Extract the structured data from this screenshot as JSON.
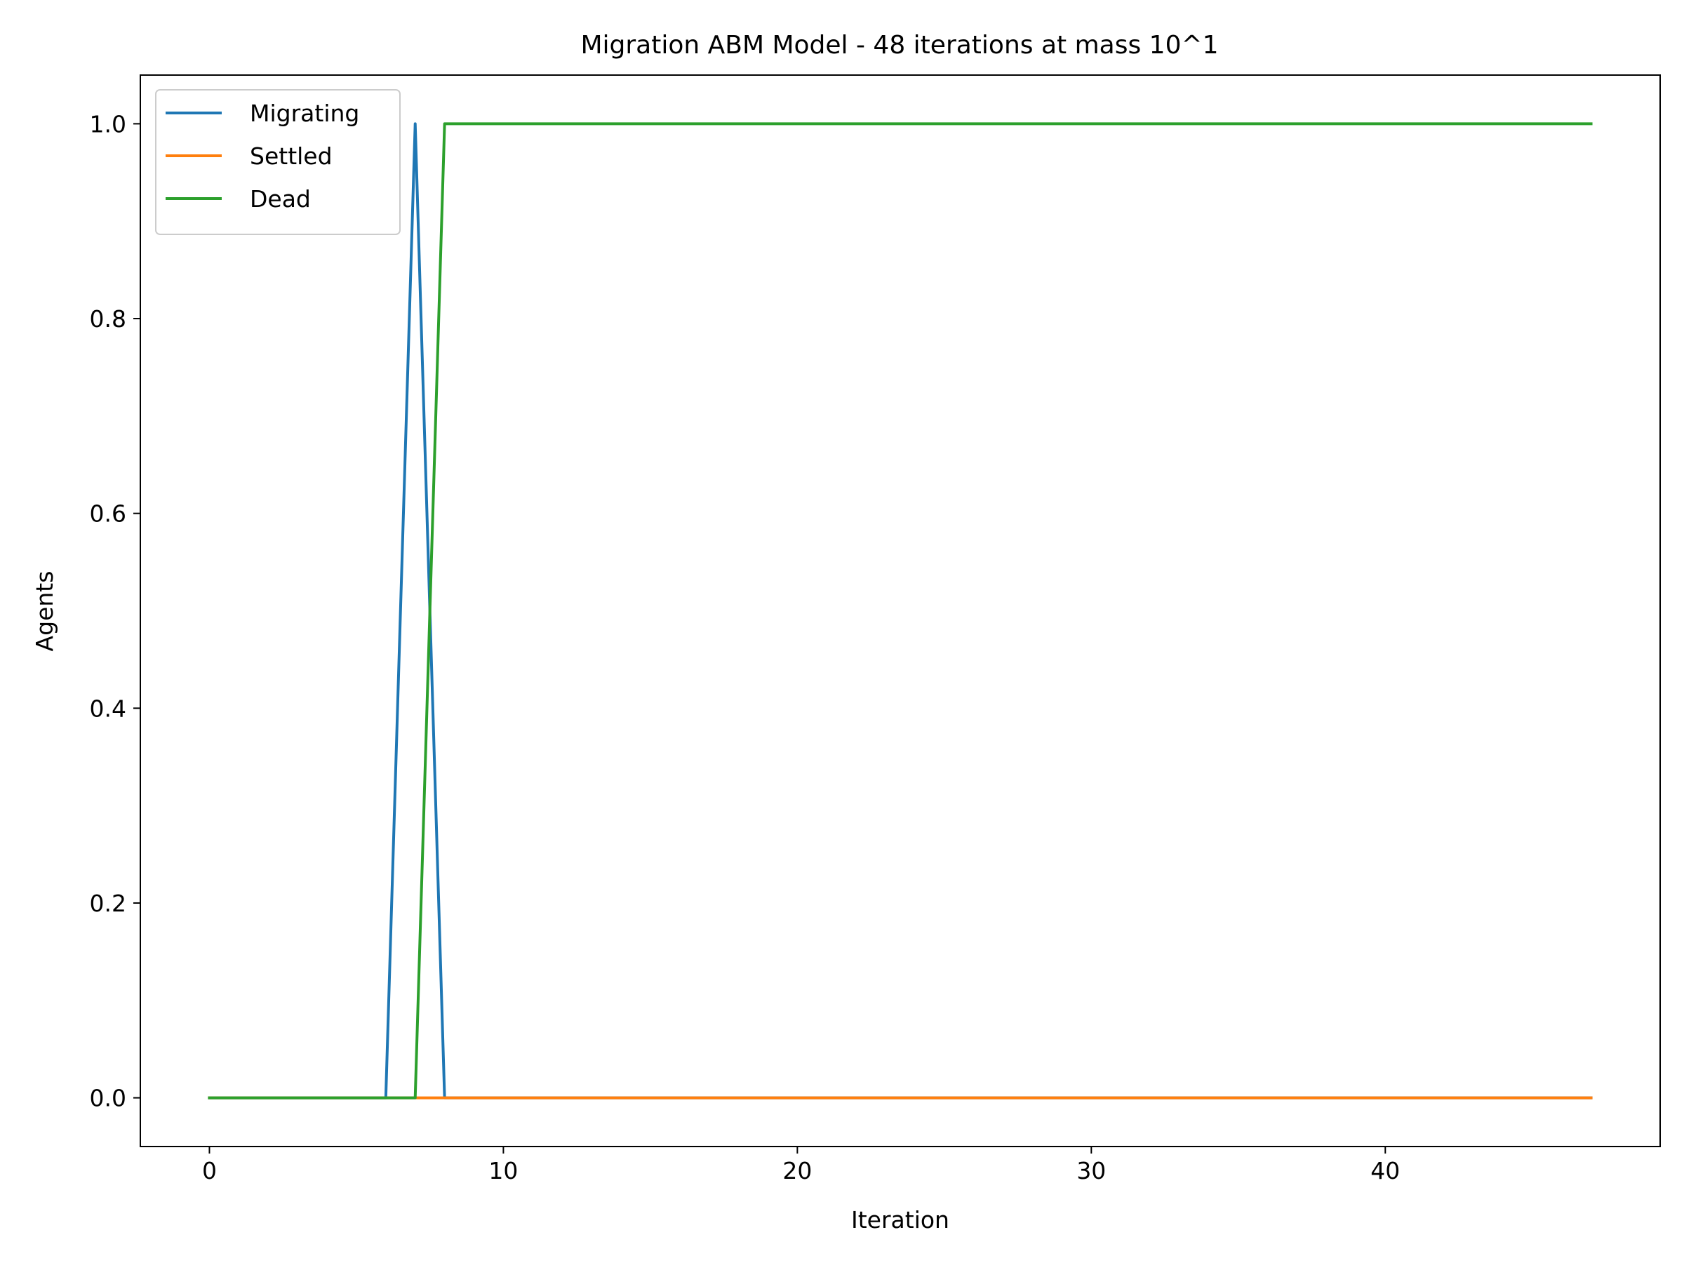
{
  "chart_data": {
    "type": "line",
    "title": "Migration ABM Model - 48 iterations at mass 10^1",
    "xlabel": "Iteration",
    "ylabel": "Agents",
    "xlim": [
      -2.35,
      49.35
    ],
    "ylim": [
      -0.05,
      1.05
    ],
    "xticks": [
      0,
      10,
      20,
      30,
      40
    ],
    "xtick_labels": [
      "0",
      "10",
      "20",
      "30",
      "40"
    ],
    "yticks": [
      0.0,
      0.2,
      0.4,
      0.6,
      0.8,
      1.0
    ],
    "ytick_labels": [
      "0.0",
      "0.2",
      "0.4",
      "0.6",
      "0.8",
      "1.0"
    ],
    "grid": false,
    "legend_position": "upper-left",
    "series": [
      {
        "name": "Migrating",
        "color": "#1f77b4",
        "x": [
          0,
          1,
          2,
          3,
          4,
          5,
          6,
          7,
          8,
          9,
          10,
          11,
          12,
          13,
          14,
          15,
          16,
          17,
          18,
          19,
          20,
          21,
          22,
          23,
          24,
          25,
          26,
          27,
          28,
          29,
          30,
          31,
          32,
          33,
          34,
          35,
          36,
          37,
          38,
          39,
          40,
          41,
          42,
          43,
          44,
          45,
          46,
          47
        ],
        "values": [
          0,
          0,
          0,
          0,
          0,
          0,
          0,
          1,
          0,
          0,
          0,
          0,
          0,
          0,
          0,
          0,
          0,
          0,
          0,
          0,
          0,
          0,
          0,
          0,
          0,
          0,
          0,
          0,
          0,
          0,
          0,
          0,
          0,
          0,
          0,
          0,
          0,
          0,
          0,
          0,
          0,
          0,
          0,
          0,
          0,
          0,
          0,
          0
        ]
      },
      {
        "name": "Settled",
        "color": "#ff7f0e",
        "x": [
          0,
          1,
          2,
          3,
          4,
          5,
          6,
          7,
          8,
          9,
          10,
          11,
          12,
          13,
          14,
          15,
          16,
          17,
          18,
          19,
          20,
          21,
          22,
          23,
          24,
          25,
          26,
          27,
          28,
          29,
          30,
          31,
          32,
          33,
          34,
          35,
          36,
          37,
          38,
          39,
          40,
          41,
          42,
          43,
          44,
          45,
          46,
          47
        ],
        "values": [
          0,
          0,
          0,
          0,
          0,
          0,
          0,
          0,
          0,
          0,
          0,
          0,
          0,
          0,
          0,
          0,
          0,
          0,
          0,
          0,
          0,
          0,
          0,
          0,
          0,
          0,
          0,
          0,
          0,
          0,
          0,
          0,
          0,
          0,
          0,
          0,
          0,
          0,
          0,
          0,
          0,
          0,
          0,
          0,
          0,
          0,
          0,
          0
        ]
      },
      {
        "name": "Dead",
        "color": "#2ca02c",
        "x": [
          0,
          1,
          2,
          3,
          4,
          5,
          6,
          7,
          8,
          9,
          10,
          11,
          12,
          13,
          14,
          15,
          16,
          17,
          18,
          19,
          20,
          21,
          22,
          23,
          24,
          25,
          26,
          27,
          28,
          29,
          30,
          31,
          32,
          33,
          34,
          35,
          36,
          37,
          38,
          39,
          40,
          41,
          42,
          43,
          44,
          45,
          46,
          47
        ],
        "values": [
          0,
          0,
          0,
          0,
          0,
          0,
          0,
          0,
          1,
          1,
          1,
          1,
          1,
          1,
          1,
          1,
          1,
          1,
          1,
          1,
          1,
          1,
          1,
          1,
          1,
          1,
          1,
          1,
          1,
          1,
          1,
          1,
          1,
          1,
          1,
          1,
          1,
          1,
          1,
          1,
          1,
          1,
          1,
          1,
          1,
          1,
          1,
          1
        ]
      }
    ]
  }
}
